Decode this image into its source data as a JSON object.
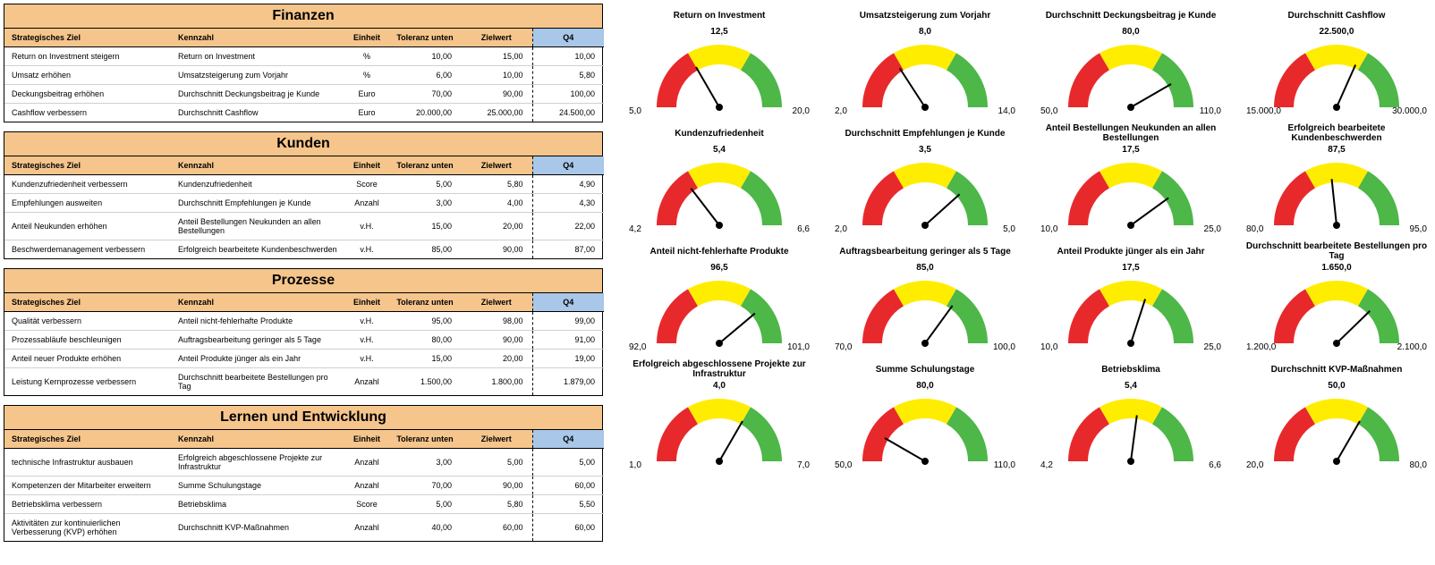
{
  "colors": {
    "header_bg": "#f5c58c",
    "q4_bg": "#a9c7e8",
    "gauge_red": "#e8292c",
    "gauge_yellow": "#ffed00",
    "gauge_green": "#4db748",
    "needle": "#000000",
    "text": "#000000",
    "border": "#000000"
  },
  "table_headers": [
    "Strategisches Ziel",
    "Kennzahl",
    "Einheit",
    "Toleranz unten",
    "Zielwert",
    "Q4"
  ],
  "sections": [
    {
      "title": "Finanzen",
      "rows": [
        {
          "goal": "Return on Investment steigern",
          "metric": "Return on Investment",
          "unit": "%",
          "tol": "10,00",
          "target": "15,00",
          "q4": "10,00"
        },
        {
          "goal": "Umsatz erhöhen",
          "metric": "Umsatzsteigerung zum Vorjahr",
          "unit": "%",
          "tol": "6,00",
          "target": "10,00",
          "q4": "5,80"
        },
        {
          "goal": "Deckungsbeitrag erhöhen",
          "metric": "Durchschnitt Deckungsbeitrag je Kunde",
          "unit": "Euro",
          "tol": "70,00",
          "target": "90,00",
          "q4": "100,00"
        },
        {
          "goal": "Cashflow verbessern",
          "metric": "Durchschnitt Cashflow",
          "unit": "Euro",
          "tol": "20.000,00",
          "target": "25.000,00",
          "q4": "24.500,00"
        }
      ],
      "gauges": [
        {
          "title": "Return on Investment",
          "min": 5.0,
          "max": 20.0,
          "value": 10.0,
          "min_label": "5,0",
          "max_label": "20,0",
          "val_label": "12,5"
        },
        {
          "title": "Umsatzsteigerung zum Vorjahr",
          "min": 2.0,
          "max": 14.0,
          "value": 5.8,
          "min_label": "2,0",
          "max_label": "14,0",
          "val_label": "8,0"
        },
        {
          "title": "Durchschnitt Deckungsbeitrag je Kunde",
          "min": 50.0,
          "max": 110.0,
          "value": 100.0,
          "min_label": "50,0",
          "max_label": "110,0",
          "val_label": "80,0"
        },
        {
          "title": "Durchschnitt Cashflow",
          "min": 15000.0,
          "max": 30000.0,
          "value": 24500.0,
          "min_label": "15.000,0",
          "max_label": "30.000,0",
          "val_label": "22.500,0"
        }
      ]
    },
    {
      "title": "Kunden",
      "rows": [
        {
          "goal": "Kundenzufriedenheit verbessern",
          "metric": "Kundenzufriedenheit",
          "unit": "Score",
          "tol": "5,00",
          "target": "5,80",
          "q4": "4,90"
        },
        {
          "goal": "Empfehlungen ausweiten",
          "metric": "Durchschnitt Empfehlungen je Kunde",
          "unit": "Anzahl",
          "tol": "3,00",
          "target": "4,00",
          "q4": "4,30"
        },
        {
          "goal": "Anteil Neukunden erhöhen",
          "metric": "Anteil Bestellungen Neukunden an allen Bestellungen",
          "unit": "v.H.",
          "tol": "15,00",
          "target": "20,00",
          "q4": "22,00"
        },
        {
          "goal": "Beschwerdemanagement verbessern",
          "metric": "Erfolgreich bearbeitete Kundenbeschwerden",
          "unit": "v.H.",
          "tol": "85,00",
          "target": "90,00",
          "q4": "87,00"
        }
      ],
      "gauges": [
        {
          "title": "Kundenzufriedenheit",
          "min": 4.2,
          "max": 6.6,
          "value": 4.9,
          "min_label": "4,2",
          "max_label": "6,6",
          "val_label": "5,4"
        },
        {
          "title": "Durchschnitt Empfehlungen je Kunde",
          "min": 2.0,
          "max": 5.0,
          "value": 4.3,
          "min_label": "2,0",
          "max_label": "5,0",
          "val_label": "3,5"
        },
        {
          "title": "Anteil Bestellungen Neukunden an allen Bestellungen",
          "min": 10.0,
          "max": 25.0,
          "value": 22.0,
          "min_label": "10,0",
          "max_label": "25,0",
          "val_label": "17,5"
        },
        {
          "title": "Erfolgreich bearbeitete Kundenbeschwerden",
          "min": 80.0,
          "max": 95.0,
          "value": 87.0,
          "min_label": "80,0",
          "max_label": "95,0",
          "val_label": "87,5"
        }
      ]
    },
    {
      "title": "Prozesse",
      "rows": [
        {
          "goal": "Qualität verbessern",
          "metric": "Anteil nicht-fehlerhafte Produkte",
          "unit": "v.H.",
          "tol": "95,00",
          "target": "98,00",
          "q4": "99,00"
        },
        {
          "goal": "Prozessabläufe beschleunigen",
          "metric": "Auftragsbearbeitung geringer als 5 Tage",
          "unit": "v.H.",
          "tol": "80,00",
          "target": "90,00",
          "q4": "91,00"
        },
        {
          "goal": "Anteil neuer Produkte erhöhen",
          "metric": "Anteil Produkte jünger als ein Jahr",
          "unit": "v.H.",
          "tol": "15,00",
          "target": "20,00",
          "q4": "19,00"
        },
        {
          "goal": "Leistung Kernprozesse verbessern",
          "metric": "Durchschnitt bearbeitete Bestellungen pro Tag",
          "unit": "Anzahl",
          "tol": "1.500,00",
          "target": "1.800,00",
          "q4": "1.879,00"
        }
      ],
      "gauges": [
        {
          "title": "Anteil nicht-fehlerhafte Produkte",
          "min": 92.0,
          "max": 101.0,
          "value": 99.0,
          "min_label": "92,0",
          "max_label": "101,0",
          "val_label": "96,5"
        },
        {
          "title": "Auftragsbearbeitung geringer als 5 Tage",
          "min": 70.0,
          "max": 100.0,
          "value": 91.0,
          "min_label": "70,0",
          "max_label": "100,0",
          "val_label": "85,0"
        },
        {
          "title": "Anteil Produkte jünger als ein Jahr",
          "min": 10.0,
          "max": 25.0,
          "value": 19.0,
          "min_label": "10,0",
          "max_label": "25,0",
          "val_label": "17,5"
        },
        {
          "title": "Durchschnitt bearbeitete Bestellungen pro Tag",
          "min": 1200.0,
          "max": 2100.0,
          "value": 1879.0,
          "min_label": "1.200,0",
          "max_label": "2.100,0",
          "val_label": "1.650,0"
        }
      ]
    },
    {
      "title": "Lernen und Entwicklung",
      "rows": [
        {
          "goal": "technische Infrastruktur ausbauen",
          "metric": "Erfolgreich abgeschlossene Projekte zur Infrastruktur",
          "unit": "Anzahl",
          "tol": "3,00",
          "target": "5,00",
          "q4": "5,00"
        },
        {
          "goal": "Kompetenzen der Mitarbeiter erweitern",
          "metric": "Summe Schulungstage",
          "unit": "Anzahl",
          "tol": "70,00",
          "target": "90,00",
          "q4": "60,00"
        },
        {
          "goal": "Betriebsklima verbessern",
          "metric": "Betriebsklima",
          "unit": "Score",
          "tol": "5,00",
          "target": "5,80",
          "q4": "5,50"
        },
        {
          "goal": "Aktivitäten zur kontinuierlichen Verbesserung (KVP) erhöhen",
          "metric": "Durchschnitt KVP-Maßnahmen",
          "unit": "Anzahl",
          "tol": "40,00",
          "target": "60,00",
          "q4": "60,00"
        }
      ],
      "gauges": [
        {
          "title": "Erfolgreich abgeschlossene Projekte zur Infrastruktur",
          "min": 1.0,
          "max": 7.0,
          "value": 5.0,
          "min_label": "1,0",
          "max_label": "7,0",
          "val_label": "4,0"
        },
        {
          "title": "Summe Schulungstage",
          "min": 50.0,
          "max": 110.0,
          "value": 60.0,
          "min_label": "50,0",
          "max_label": "110,0",
          "val_label": "80,0"
        },
        {
          "title": "Betriebsklima",
          "min": 4.2,
          "max": 6.6,
          "value": 5.5,
          "min_label": "4,2",
          "max_label": "6,6",
          "val_label": "5,4"
        },
        {
          "title": "Durchschnitt KVP-Maßnahmen",
          "min": 20.0,
          "max": 80.0,
          "value": 60.0,
          "min_label": "20,0",
          "max_label": "80,0",
          "val_label": "50,0"
        }
      ]
    }
  ]
}
